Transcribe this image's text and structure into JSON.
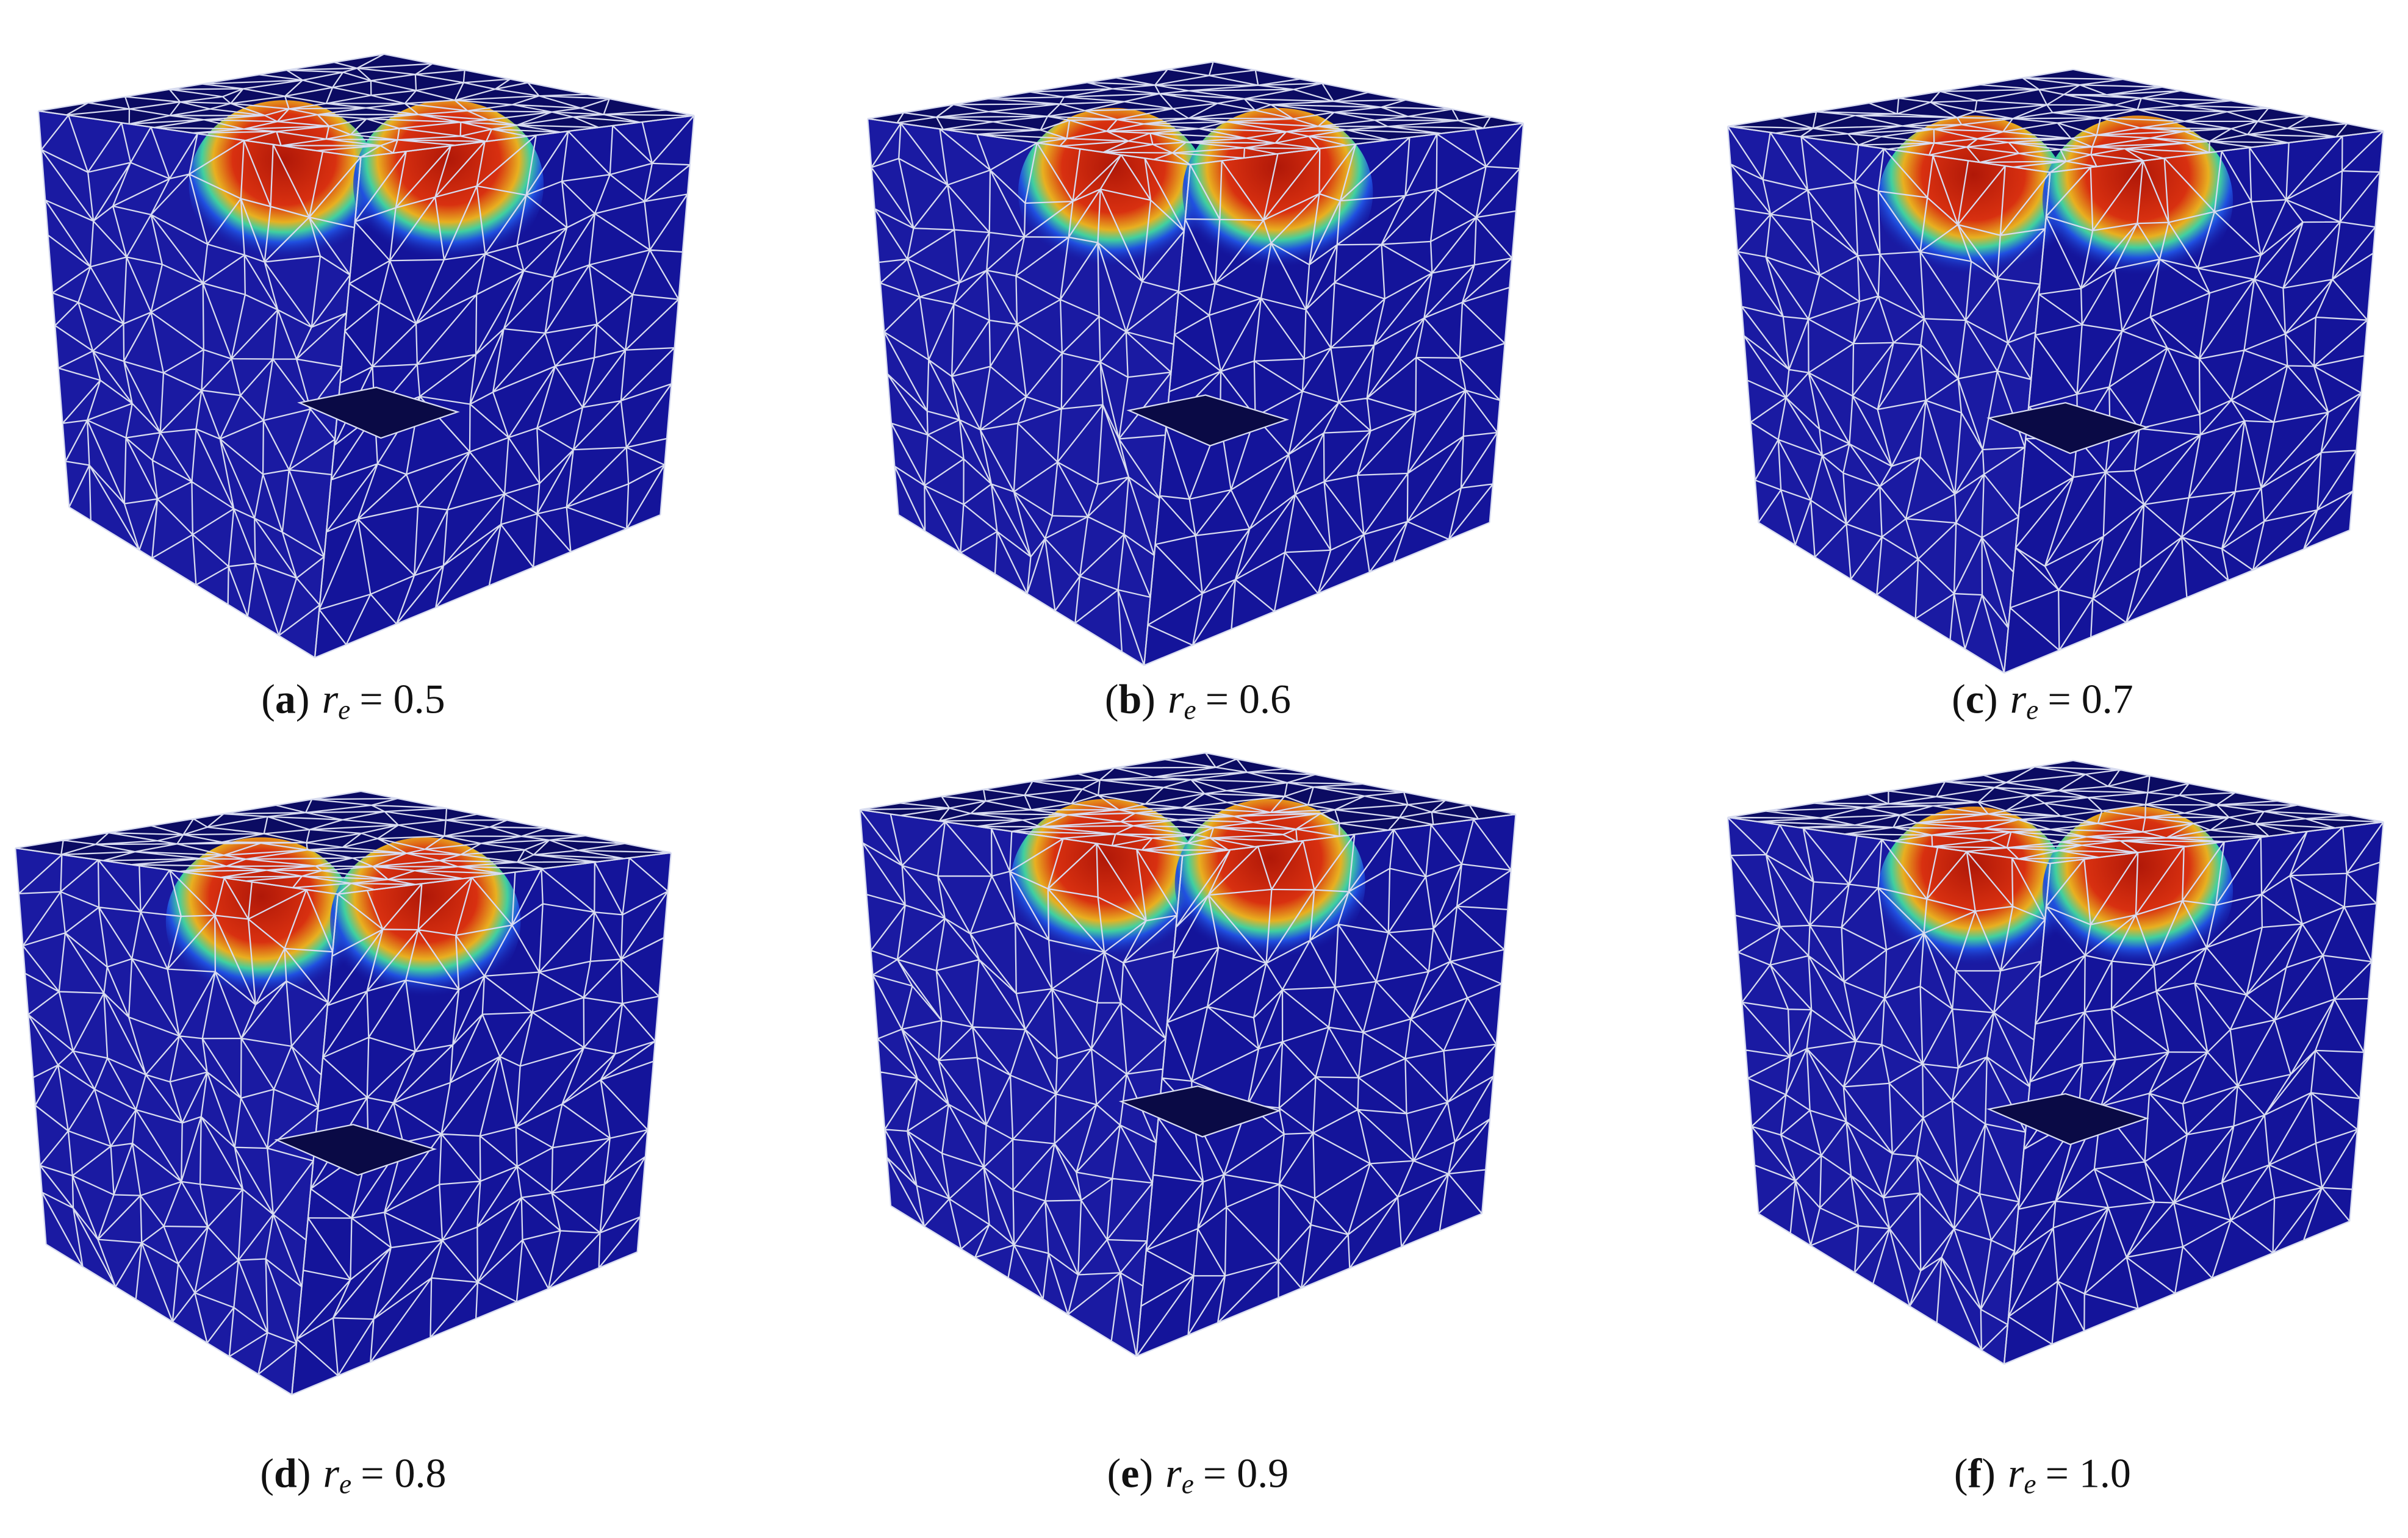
{
  "figure": {
    "panels": [
      {
        "prefix": "(",
        "letter": "a",
        "suffix": ")",
        "symbol": "r",
        "subscript": "e",
        "value": "= 0.5"
      },
      {
        "prefix": "(",
        "letter": "b",
        "suffix": ")",
        "symbol": "r",
        "subscript": "e",
        "value": "= 0.6"
      },
      {
        "prefix": "(",
        "letter": "c",
        "suffix": ")",
        "symbol": "r",
        "subscript": "e",
        "value": "= 0.7"
      },
      {
        "prefix": "(",
        "letter": "d",
        "suffix": ")",
        "symbol": "r",
        "subscript": "e",
        "value": "= 0.8"
      },
      {
        "prefix": "(",
        "letter": "e",
        "suffix": ")",
        "symbol": "r",
        "subscript": "e",
        "value": "= 0.9"
      },
      {
        "prefix": "(",
        "letter": "f",
        "suffix": ")",
        "symbol": "r",
        "subscript": "e",
        "value": "= 1.0"
      }
    ]
  }
}
